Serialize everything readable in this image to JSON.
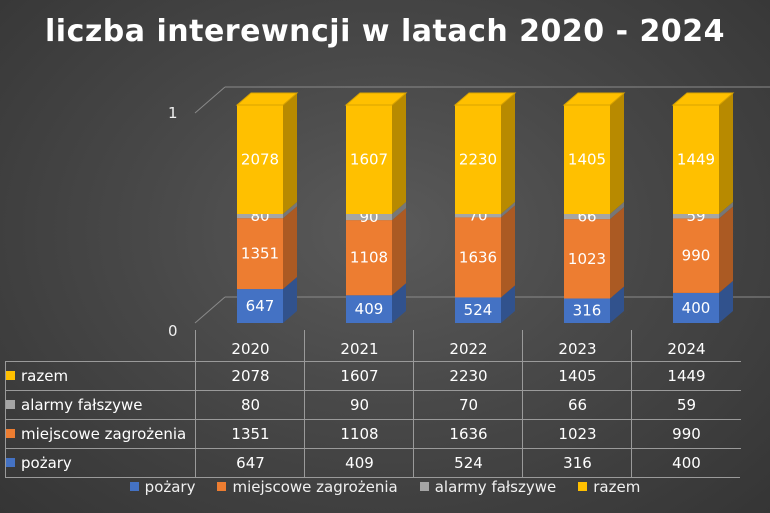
{
  "chart_data": {
    "type": "bar",
    "stacked": true,
    "three_d": true,
    "title": "liczba interewncji w latach 2020 - 2024",
    "categories": [
      "2020",
      "2021",
      "2022",
      "2023",
      "2024"
    ],
    "y_tick_labels": [
      "1",
      "0"
    ],
    "series": [
      {
        "name": "pożary",
        "color": "#4472C4",
        "values": [
          647,
          409,
          524,
          316,
          400
        ]
      },
      {
        "name": "miejscowe zagrożenia",
        "color": "#ED7D31",
        "values": [
          1351,
          1108,
          1636,
          1023,
          990
        ]
      },
      {
        "name": "alarmy fałszywe",
        "color": "#A5A5A5",
        "values": [
          80,
          90,
          70,
          66,
          59
        ]
      },
      {
        "name": "razem",
        "color": "#FFC000",
        "values": [
          2078,
          1607,
          2230,
          1405,
          1449
        ]
      }
    ],
    "data_table": true,
    "table_row_order": [
      "razem",
      "alarmy fałszywe",
      "miejscowe zagrożenia",
      "pożary"
    ],
    "legend_position": "bottom",
    "grid": false
  }
}
